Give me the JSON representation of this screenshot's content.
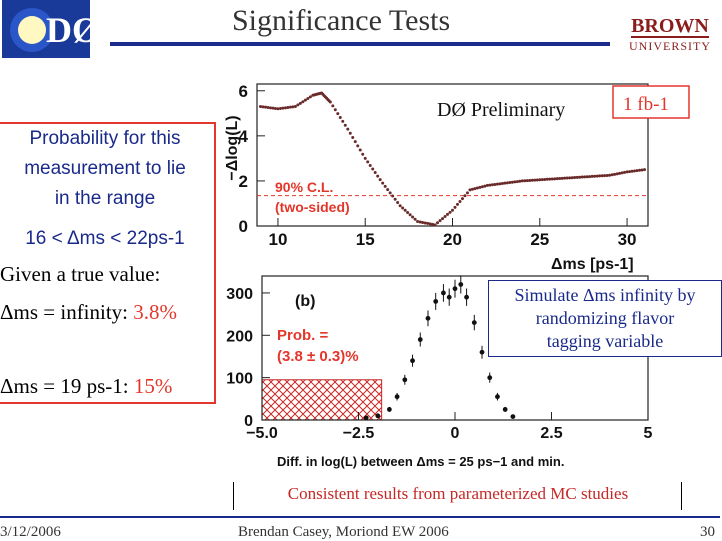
{
  "title": "Significance Tests",
  "logos": {
    "left_text": "DØ",
    "right_top": "BROWN",
    "right_bottom": "UNIVERSITY"
  },
  "left_panel": {
    "probability_lines": [
      "Probability for this",
      "measurement to lie",
      "in the range"
    ],
    "range_text": "16 < Δms < 22ps-1",
    "given_text": "Given a true value:",
    "case1_label": "Δms = infinity:",
    "case1_value": "3.8%",
    "case2_label": "Δms = 19 ps-1:",
    "case2_value": "15%"
  },
  "colors": {
    "accent": "#e4362b",
    "navy": "#1a2a8a",
    "hist_hatch": "#c62826"
  },
  "simulate_box": [
    "Simulate Δms infinity by",
    "randomizing flavor",
    "tagging variable"
  ],
  "consistent_text": "Consistent results from parameterized MC studies",
  "footer": {
    "date": "3/12/2006",
    "author": "Brendan Casey, Moriond EW 2006",
    "page": "30"
  },
  "chart_data": [
    {
      "type": "line",
      "title": "DØ Preliminary",
      "luminosity": "1 fb-1",
      "ylabel": "−Δlog(L)",
      "xlabel": "Δms [ps-1]",
      "xlim": [
        8.8,
        31.2
      ],
      "ylim": [
        0,
        6.3
      ],
      "xticks": [
        10,
        15,
        20,
        25,
        30
      ],
      "yticks": [
        0,
        2,
        4,
        6
      ],
      "cl_line": 1.35,
      "cl_label": [
        "90% C.L.",
        "(two-sided)"
      ],
      "x": [
        9,
        10,
        11,
        12,
        12.5,
        13,
        14,
        15,
        16,
        17,
        18,
        19,
        20,
        21,
        22,
        23,
        24,
        25,
        26,
        27,
        28,
        29,
        30,
        31
      ],
      "values": [
        5.3,
        5.2,
        5.3,
        5.8,
        5.9,
        5.5,
        4.3,
        3.0,
        1.9,
        0.9,
        0.2,
        0.05,
        0.7,
        1.6,
        1.8,
        1.9,
        2.0,
        2.05,
        2.1,
        2.15,
        2.2,
        2.25,
        2.4,
        2.5
      ]
    },
    {
      "type": "scatter",
      "panel_label": "(b)",
      "prob_lines": [
        "Prob. =",
        "(3.8 ± 0.3)%"
      ],
      "xlabel": "Diff. in log(L) between Δms = 25 ps−1 and min.",
      "xlim": [
        -5.0,
        5.0
      ],
      "ylim": [
        0,
        340
      ],
      "xticks": [
        "−5.0",
        "−2.5",
        "0",
        "2.5",
        "5"
      ],
      "xtick_values": [
        -5.0,
        -2.5,
        0,
        2.5,
        5
      ],
      "yticks": [
        0,
        100,
        200,
        300
      ],
      "hatch_range": [
        -5.0,
        -1.9
      ],
      "hatch_height": 95,
      "x": [
        -2.3,
        -2.0,
        -1.7,
        -1.5,
        -1.3,
        -1.1,
        -0.9,
        -0.7,
        -0.5,
        -0.3,
        -0.15,
        0,
        0.15,
        0.3,
        0.5,
        0.7,
        0.9,
        1.1,
        1.3,
        1.5
      ],
      "values": [
        5,
        10,
        25,
        55,
        95,
        140,
        190,
        240,
        280,
        300,
        290,
        310,
        320,
        290,
        230,
        160,
        100,
        55,
        25,
        8
      ]
    }
  ]
}
